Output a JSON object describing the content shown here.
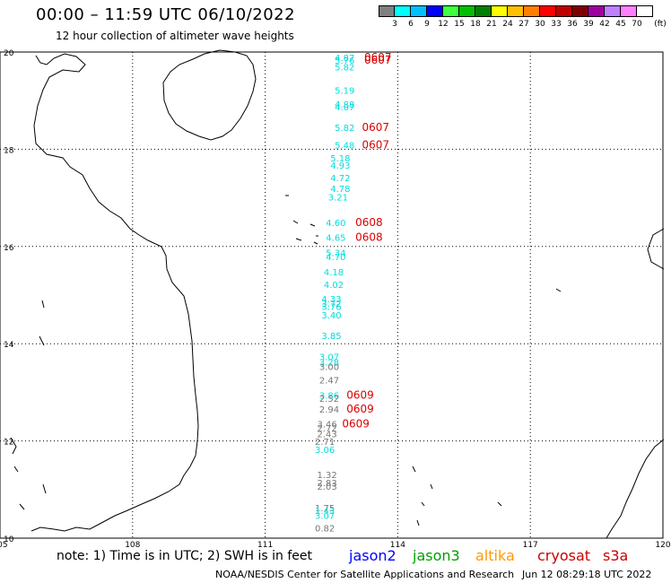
{
  "title": "00:00 – 11:59 UTC 06/10/2022",
  "subtitle": "12 hour collection of altimeter wave heights",
  "legend": {
    "colors": [
      "#808080",
      "#00ffff",
      "#00c0ff",
      "#0000ff",
      "#40ff40",
      "#00c000",
      "#008000",
      "#ffff00",
      "#ffc000",
      "#ff8000",
      "#ff0000",
      "#c00000",
      "#800000",
      "#a000a0",
      "#c080ff",
      "#ff80ff",
      "#ffffff"
    ],
    "labels": [
      "3",
      "6",
      "9",
      "12",
      "15",
      "18",
      "21",
      "24",
      "27",
      "30",
      "33",
      "36",
      "39",
      "42",
      "45",
      "70"
    ],
    "unit": "(ft)"
  },
  "axes": {
    "lat_labels": [
      "20",
      "18",
      "16",
      "14",
      "12",
      "10"
    ],
    "lon_labels": [
      "105",
      "108",
      "111",
      "114",
      "117",
      "120"
    ]
  },
  "satellites": [
    {
      "name": "jason2",
      "color": "#0000ff"
    },
    {
      "name": "jason3",
      "color": "#00a000"
    },
    {
      "name": "altika",
      "color": "#ff9900"
    },
    {
      "name": "cryosat",
      "color": "#cc0000"
    },
    {
      "name": "s3a",
      "color": "#cc0000"
    }
  ],
  "footer_note": "note:  1) Time is in UTC;  2) SWH is in feet",
  "credit": "NOAA/NESDIS Center for Satellite Applications and Research",
  "timestamp": "Jun 12 08:29:18 UTC 2022",
  "measurements": [
    {
      "lon": 112.8,
      "lat": 19.82,
      "value": "4.87",
      "color": "#00dddd"
    },
    {
      "lon": 112.8,
      "lat": 19.76,
      "value": "5.76",
      "color": "#00dddd"
    },
    {
      "lon": 112.8,
      "lat": 19.62,
      "value": "5.82",
      "color": "#00dddd"
    },
    {
      "lon": 112.8,
      "lat": 19.14,
      "value": "5.19",
      "color": "#00dddd"
    },
    {
      "lon": 112.8,
      "lat": 18.86,
      "value": "4.88",
      "color": "#00dddd"
    },
    {
      "lon": 112.8,
      "lat": 18.8,
      "value": "4.07",
      "color": "#00dddd"
    },
    {
      "lon": 112.8,
      "lat": 18.38,
      "value": "5.82",
      "color": "#00dddd"
    },
    {
      "lon": 112.8,
      "lat": 18.02,
      "value": "5.48",
      "color": "#00dddd"
    },
    {
      "lon": 112.7,
      "lat": 17.75,
      "value": "5.18",
      "color": "#00dddd"
    },
    {
      "lon": 112.7,
      "lat": 17.6,
      "value": "4.93",
      "color": "#00dddd"
    },
    {
      "lon": 112.7,
      "lat": 17.34,
      "value": "4.72",
      "color": "#00dddd"
    },
    {
      "lon": 112.7,
      "lat": 17.12,
      "value": "4.78",
      "color": "#00dddd"
    },
    {
      "lon": 112.65,
      "lat": 16.95,
      "value": "3.21",
      "color": "#00dddd"
    },
    {
      "lon": 112.6,
      "lat": 16.42,
      "value": "4.60",
      "color": "#00dddd"
    },
    {
      "lon": 112.6,
      "lat": 16.12,
      "value": "4.65",
      "color": "#00dddd"
    },
    {
      "lon": 112.6,
      "lat": 15.8,
      "value": "5.34",
      "color": "#00dddd"
    },
    {
      "lon": 112.6,
      "lat": 15.72,
      "value": "4.70",
      "color": "#00dddd"
    },
    {
      "lon": 112.55,
      "lat": 15.41,
      "value": "4.18",
      "color": "#00dddd"
    },
    {
      "lon": 112.55,
      "lat": 15.15,
      "value": "4.02",
      "color": "#00dddd"
    },
    {
      "lon": 112.5,
      "lat": 14.85,
      "value": "4.33",
      "color": "#00dddd"
    },
    {
      "lon": 112.5,
      "lat": 14.76,
      "value": "3.72",
      "color": "#00dddd"
    },
    {
      "lon": 112.5,
      "lat": 14.7,
      "value": "3.76",
      "color": "#00dddd"
    },
    {
      "lon": 112.5,
      "lat": 14.52,
      "value": "3.40",
      "color": "#00dddd"
    },
    {
      "lon": 112.5,
      "lat": 14.1,
      "value": "3.85",
      "color": "#00dddd"
    },
    {
      "lon": 112.45,
      "lat": 13.66,
      "value": "3.07",
      "color": "#00dddd"
    },
    {
      "lon": 112.45,
      "lat": 13.55,
      "value": "3.28",
      "color": "#00dddd"
    },
    {
      "lon": 112.45,
      "lat": 13.46,
      "value": "3.00",
      "color": "#777777"
    },
    {
      "lon": 112.45,
      "lat": 13.18,
      "value": "2.47",
      "color": "#777777"
    },
    {
      "lon": 112.45,
      "lat": 12.87,
      "value": "3.86",
      "color": "#00dddd"
    },
    {
      "lon": 112.45,
      "lat": 12.8,
      "value": "2.52",
      "color": "#777777"
    },
    {
      "lon": 112.45,
      "lat": 12.58,
      "value": "2.94",
      "color": "#777777"
    },
    {
      "lon": 112.4,
      "lat": 12.28,
      "value": "3.46",
      "color": "#777777"
    },
    {
      "lon": 112.4,
      "lat": 12.2,
      "value": "2.72",
      "color": "#777777"
    },
    {
      "lon": 112.4,
      "lat": 12.08,
      "value": "2.43",
      "color": "#777777"
    },
    {
      "lon": 112.35,
      "lat": 11.92,
      "value": "2.71",
      "color": "#777777"
    },
    {
      "lon": 112.35,
      "lat": 11.75,
      "value": "3.06",
      "color": "#00dddd"
    },
    {
      "lon": 112.4,
      "lat": 11.24,
      "value": "1.32",
      "color": "#777777"
    },
    {
      "lon": 112.4,
      "lat": 11.07,
      "value": "2.83",
      "color": "#777777"
    },
    {
      "lon": 112.4,
      "lat": 11.0,
      "value": "2.03",
      "color": "#777777"
    },
    {
      "lon": 112.35,
      "lat": 10.55,
      "value": "1.75",
      "color": "#777777"
    },
    {
      "lon": 112.35,
      "lat": 10.5,
      "value": "1.43",
      "color": "#00dddd"
    },
    {
      "lon": 112.35,
      "lat": 10.4,
      "value": "3.07",
      "color": "#00dddd"
    },
    {
      "lon": 112.35,
      "lat": 10.14,
      "value": "0.82",
      "color": "#777777"
    }
  ],
  "time_labels": [
    {
      "lon": 113.55,
      "lat": 19.82,
      "text": "0607",
      "color": "#dd0000"
    },
    {
      "lon": 113.55,
      "lat": 19.76,
      "text": "0607",
      "color": "#dd0000"
    },
    {
      "lon": 113.5,
      "lat": 18.38,
      "text": "0607",
      "color": "#dd0000"
    },
    {
      "lon": 113.5,
      "lat": 18.02,
      "text": "0607",
      "color": "#dd0000"
    },
    {
      "lon": 113.35,
      "lat": 16.42,
      "text": "0608",
      "color": "#dd0000"
    },
    {
      "lon": 113.35,
      "lat": 16.12,
      "text": "0608",
      "color": "#dd0000"
    },
    {
      "lon": 113.15,
      "lat": 12.87,
      "text": "0609",
      "color": "#dd0000"
    },
    {
      "lon": 113.15,
      "lat": 12.58,
      "text": "0609",
      "color": "#dd0000"
    },
    {
      "lon": 113.05,
      "lat": 12.28,
      "text": "0609",
      "color": "#dd0000"
    }
  ]
}
